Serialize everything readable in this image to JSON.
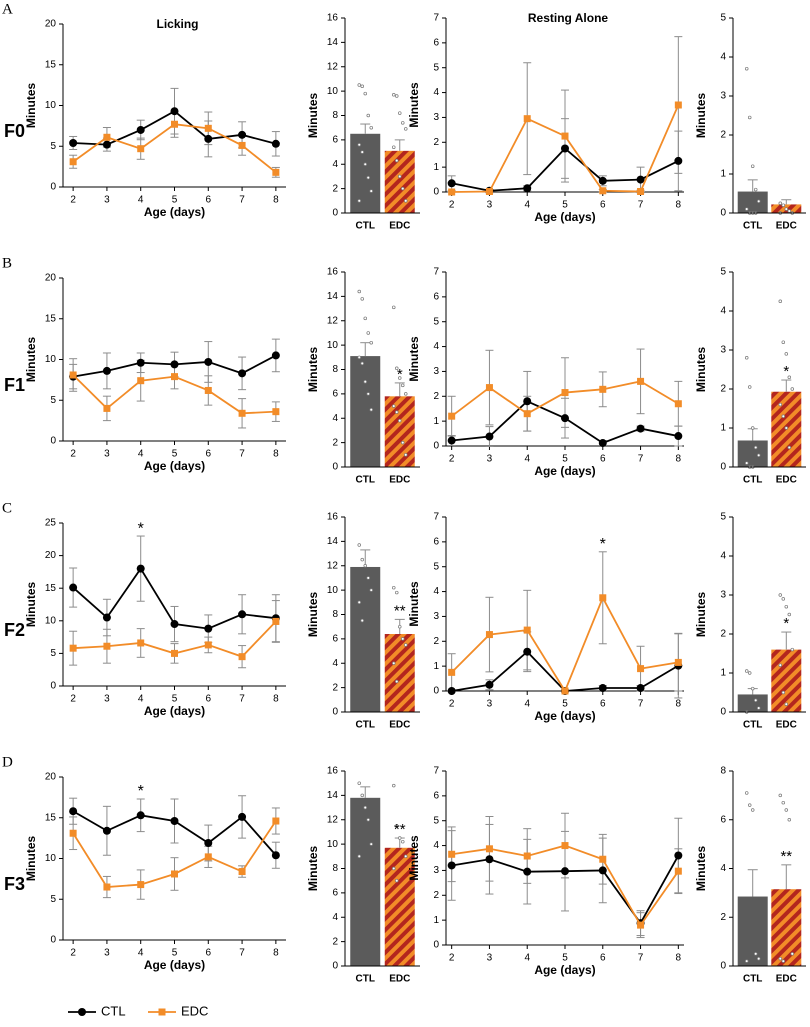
{
  "rows": [
    {
      "letter": "A",
      "generation": "F0"
    },
    {
      "letter": "B",
      "generation": "F1"
    },
    {
      "letter": "C",
      "generation": "F2"
    },
    {
      "letter": "D",
      "generation": "F3"
    }
  ],
  "chart_data": [
    {
      "type": "line",
      "title": "Licking",
      "xlabel": "Age (days)",
      "ylabel": "Minutes",
      "x": [
        2,
        3,
        4,
        5,
        6,
        7,
        8
      ],
      "xlim": [
        1.7,
        8.3
      ],
      "xticks": [
        2,
        3,
        4,
        5,
        6,
        7,
        8
      ],
      "ylim": [
        0,
        20
      ],
      "yticks": [
        0,
        5,
        10,
        15,
        20
      ],
      "series": [
        {
          "name": "CTL",
          "color": "#000000",
          "marker": "circle",
          "values": [
            5.4,
            5.2,
            7.0,
            9.3,
            5.9,
            6.4,
            5.3
          ],
          "errors": [
            0.8,
            0.8,
            1.2,
            2.8,
            2.2,
            1.6,
            1.5
          ]
        },
        {
          "name": "EDC",
          "color": "#f28c28",
          "marker": "square",
          "values": [
            3.1,
            6.1,
            4.7,
            7.7,
            7.2,
            5.1,
            1.8
          ],
          "errors": [
            0.8,
            1.2,
            1.3,
            1.6,
            2.0,
            1.2,
            0.6
          ]
        }
      ]
    },
    {
      "type": "bar",
      "ylabel": "Minutes",
      "categories": [
        "CTL",
        "EDC"
      ],
      "values": [
        6.5,
        5.1
      ],
      "errors": [
        0.8,
        0.9
      ],
      "colors": [
        "#5b5b5b",
        "#f28c28"
      ],
      "hatch": [
        false,
        true
      ],
      "hatch_color": "#b3261e",
      "ylim": [
        0,
        16
      ],
      "yticks": [
        0,
        2,
        4,
        6,
        8,
        10,
        12,
        14,
        16
      ],
      "points": [
        [
          10.5,
          10.4,
          9.8,
          8,
          7,
          5.6,
          5,
          4,
          2.9,
          1.8,
          1
        ],
        [
          9.7,
          9.6,
          8.2,
          7.4,
          6.9,
          5.4,
          4.3,
          3,
          2,
          1
        ]
      ]
    },
    {
      "type": "line",
      "title": "Resting Alone",
      "xlabel": "Age (days)",
      "ylabel": "Minutes",
      "x": [
        2,
        3,
        4,
        5,
        6,
        7,
        8
      ],
      "xlim": [
        1.85,
        8.15
      ],
      "xticks": [
        2,
        3,
        4,
        5,
        6,
        7,
        8
      ],
      "ylim": [
        0,
        7
      ],
      "yticks": [
        0,
        1,
        2,
        3,
        4,
        5,
        6,
        7
      ],
      "series": [
        {
          "name": "CTL",
          "color": "#000000",
          "marker": "circle",
          "values": [
            0.35,
            0.05,
            0.15,
            1.75,
            0.45,
            0.5,
            1.25
          ],
          "errors": [
            0.3,
            0.05,
            0.1,
            1.2,
            0.2,
            0.5,
            1.2
          ]
        },
        {
          "name": "EDC",
          "color": "#f28c28",
          "marker": "square",
          "values": [
            0,
            0.02,
            2.95,
            2.25,
            0.05,
            0.02,
            3.5
          ],
          "errors": [
            0,
            0.05,
            2.25,
            1.85,
            0.05,
            0.05,
            2.75
          ]
        }
      ]
    },
    {
      "type": "bar",
      "ylabel": "Minutes",
      "categories": [
        "CTL",
        "EDC"
      ],
      "values": [
        0.55,
        0.22
      ],
      "errors": [
        0.3,
        0.12
      ],
      "colors": [
        "#5b5b5b",
        "#f28c28"
      ],
      "hatch": [
        false,
        true
      ],
      "hatch_color": "#b3261e",
      "ylim": [
        0,
        5
      ],
      "yticks": [
        0,
        1,
        2,
        3,
        4,
        5
      ],
      "points": [
        [
          3.7,
          2.45,
          1.2,
          0.6,
          0.3,
          0.1,
          0,
          0,
          0
        ],
        [
          0.25,
          0.2,
          0.1,
          0.05,
          0,
          0
        ]
      ]
    },
    {
      "type": "line",
      "xlabel": "Age (days)",
      "ylabel": "Minutes",
      "x": [
        2,
        3,
        4,
        5,
        6,
        7,
        8
      ],
      "xlim": [
        1.7,
        8.3
      ],
      "xticks": [
        2,
        3,
        4,
        5,
        6,
        7,
        8
      ],
      "ylim": [
        0,
        20
      ],
      "yticks": [
        0,
        5,
        10,
        15,
        20
      ],
      "series": [
        {
          "name": "CTL",
          "color": "#000000",
          "marker": "circle",
          "values": [
            7.9,
            8.6,
            9.6,
            9.4,
            9.7,
            8.3,
            10.5
          ],
          "errors": [
            1.5,
            2.2,
            1.2,
            1.5,
            2.5,
            2.0,
            2.0
          ]
        },
        {
          "name": "EDC",
          "color": "#f28c28",
          "marker": "square",
          "values": [
            8.1,
            4.0,
            7.4,
            7.9,
            6.2,
            3.4,
            3.6
          ],
          "errors": [
            2.0,
            1.5,
            2.5,
            1.5,
            1.8,
            1.8,
            1.2
          ]
        }
      ]
    },
    {
      "type": "bar",
      "ylabel": "Minutes",
      "categories": [
        "CTL",
        "EDC"
      ],
      "values": [
        9.1,
        5.8
      ],
      "errors": [
        1.1,
        1.1
      ],
      "colors": [
        "#5b5b5b",
        "#f28c28"
      ],
      "hatch": [
        false,
        true
      ],
      "hatch_color": "#b3261e",
      "ylim": [
        0,
        16
      ],
      "yticks": [
        0,
        2,
        4,
        6,
        8,
        10,
        12,
        14,
        16
      ],
      "points": [
        [
          14.4,
          13.8,
          12.2,
          11,
          10.2,
          9,
          8.5,
          7,
          6,
          4.7
        ],
        [
          13.1,
          8.1,
          7.3,
          6.7,
          6,
          5,
          4.5,
          3.8,
          2,
          1
        ]
      ],
      "annotations": [
        {
          "text": "*",
          "category": "EDC"
        }
      ]
    },
    {
      "type": "line",
      "xlabel": "Age (days)",
      "ylabel": "Minutes",
      "x": [
        2,
        3,
        4,
        5,
        6,
        7,
        8
      ],
      "xlim": [
        1.85,
        8.15
      ],
      "xticks": [
        2,
        3,
        4,
        5,
        6,
        7,
        8
      ],
      "ylim": [
        0,
        7
      ],
      "yticks": [
        0,
        1,
        2,
        3,
        4,
        5,
        6,
        7
      ],
      "series": [
        {
          "name": "CTL",
          "color": "#000000",
          "marker": "circle",
          "values": [
            0.22,
            0.38,
            1.8,
            1.12,
            0.12,
            0.7,
            0.4
          ],
          "errors": [
            0.2,
            0.4,
            1.2,
            0.8,
            0.1,
            0.1,
            0.4
          ]
        },
        {
          "name": "EDC",
          "color": "#f28c28",
          "marker": "square",
          "values": [
            1.2,
            2.35,
            1.3,
            2.15,
            2.28,
            2.6,
            1.7
          ],
          "errors": [
            0.8,
            1.5,
            0.7,
            1.4,
            0.7,
            1.3,
            0.9
          ]
        }
      ]
    },
    {
      "type": "bar",
      "ylabel": "Minutes",
      "categories": [
        "CTL",
        "EDC"
      ],
      "values": [
        0.68,
        1.93
      ],
      "errors": [
        0.3,
        0.3
      ],
      "colors": [
        "#5b5b5b",
        "#f28c28"
      ],
      "hatch": [
        false,
        true
      ],
      "hatch_color": "#b3261e",
      "ylim": [
        0,
        5
      ],
      "yticks": [
        0,
        1,
        2,
        3,
        4,
        5
      ],
      "points": [
        [
          2.8,
          2.05,
          1,
          0.5,
          0.3,
          0.1,
          0,
          0
        ],
        [
          4.25,
          3.2,
          2.9,
          2.3,
          2,
          1.6,
          1.3,
          1,
          0.5
        ]
      ],
      "annotations": [
        {
          "text": "*",
          "category": "EDC"
        }
      ]
    },
    {
      "type": "line",
      "xlabel": "Age (days)",
      "ylabel": "Minutes",
      "x": [
        2,
        3,
        4,
        5,
        6,
        7,
        8
      ],
      "xlim": [
        1.7,
        8.3
      ],
      "xticks": [
        2,
        3,
        4,
        5,
        6,
        7,
        8
      ],
      "ylim": [
        0,
        25
      ],
      "yticks": [
        0,
        5,
        10,
        15,
        20,
        25
      ],
      "series": [
        {
          "name": "CTL",
          "color": "#000000",
          "marker": "circle",
          "values": [
            15.1,
            10.5,
            18.0,
            9.5,
            8.8,
            11.0,
            10.4
          ],
          "errors": [
            3.0,
            2.8,
            5.0,
            2.7,
            2.1,
            3.0,
            3.6
          ]
        },
        {
          "name": "EDC",
          "color": "#f28c28",
          "marker": "square",
          "values": [
            5.8,
            6.1,
            6.6,
            5.0,
            6.3,
            4.5,
            9.9
          ],
          "errors": [
            2.6,
            2.6,
            2.2,
            1.5,
            1.2,
            1.7,
            3.2
          ]
        }
      ],
      "annotations": [
        {
          "text": "*",
          "x": 4
        }
      ]
    },
    {
      "type": "bar",
      "ylabel": "Minutes",
      "categories": [
        "CTL",
        "EDC"
      ],
      "values": [
        11.9,
        6.4
      ],
      "errors": [
        1.4,
        1.2
      ],
      "colors": [
        "#5b5b5b",
        "#f28c28"
      ],
      "hatch": [
        false,
        true
      ],
      "hatch_color": "#b3261e",
      "ylim": [
        0,
        16
      ],
      "yticks": [
        0,
        2,
        4,
        6,
        8,
        10,
        12,
        14,
        16
      ],
      "points": [
        [
          13.7,
          12.5,
          12,
          11,
          10,
          9,
          7.5
        ],
        [
          10.2,
          9.8,
          7,
          6,
          5.5,
          4,
          2.5
        ]
      ],
      "annotations": [
        {
          "text": "**",
          "category": "EDC"
        }
      ]
    },
    {
      "type": "line",
      "xlabel": "Age (days)",
      "ylabel": "Minutes",
      "x": [
        2,
        3,
        4,
        5,
        6,
        7,
        8
      ],
      "xlim": [
        1.85,
        8.15
      ],
      "xticks": [
        2,
        3,
        4,
        5,
        6,
        7,
        8
      ],
      "ylim": [
        0,
        7
      ],
      "yticks": [
        0,
        1,
        2,
        3,
        4,
        5,
        6,
        7
      ],
      "series": [
        {
          "name": "CTL",
          "color": "#000000",
          "marker": "circle",
          "values": [
            0,
            0.25,
            1.58,
            0,
            0.12,
            0.12,
            1.02
          ],
          "errors": [
            0,
            0.2,
            0.8,
            0,
            0.1,
            0.1,
            1.3
          ]
        },
        {
          "name": "EDC",
          "color": "#f28c28",
          "marker": "square",
          "values": [
            0.75,
            2.27,
            2.45,
            0,
            3.75,
            0.9,
            1.15
          ],
          "errors": [
            0.75,
            1.5,
            1.6,
            0,
            1.85,
            0.9,
            1.15
          ]
        }
      ],
      "annotations": [
        {
          "text": "*",
          "x": 6
        }
      ]
    },
    {
      "type": "bar",
      "ylabel": "Minutes",
      "categories": [
        "CTL",
        "EDC"
      ],
      "values": [
        0.45,
        1.6
      ],
      "errors": [
        0.15,
        0.45
      ],
      "colors": [
        "#5b5b5b",
        "#f28c28"
      ],
      "hatch": [
        false,
        true
      ],
      "hatch_color": "#b3261e",
      "ylim": [
        0,
        5
      ],
      "yticks": [
        0,
        1,
        2,
        3,
        4,
        5
      ],
      "points": [
        [
          1.05,
          1,
          0.6,
          0.3,
          0.1,
          0
        ],
        [
          3,
          2.9,
          2.7,
          2.5,
          1.6,
          1.2,
          0.5,
          0.2
        ]
      ],
      "annotations": [
        {
          "text": "*",
          "category": "EDC"
        }
      ]
    },
    {
      "type": "line",
      "xlabel": "Age (days)",
      "ylabel": "Minutes",
      "x": [
        2,
        3,
        4,
        5,
        6,
        7,
        8
      ],
      "xlim": [
        1.7,
        8.3
      ],
      "xticks": [
        2,
        3,
        4,
        5,
        6,
        7,
        8
      ],
      "ylim": [
        0,
        20
      ],
      "yticks": [
        0,
        5,
        10,
        15,
        20
      ],
      "series": [
        {
          "name": "CTL",
          "color": "#000000",
          "marker": "circle",
          "values": [
            15.8,
            13.4,
            15.3,
            14.6,
            11.9,
            15.1,
            10.4
          ],
          "errors": [
            1.6,
            3.0,
            2.0,
            2.7,
            2.2,
            2.6,
            1.6
          ]
        },
        {
          "name": "EDC",
          "color": "#f28c28",
          "marker": "square",
          "values": [
            13.1,
            6.5,
            6.8,
            8.1,
            10.2,
            8.4,
            14.6
          ],
          "errors": [
            2.0,
            1.3,
            1.8,
            2.0,
            1.3,
            0.7,
            1.6
          ]
        }
      ],
      "annotations": [
        {
          "text": "*",
          "x": 4
        }
      ]
    },
    {
      "type": "bar",
      "ylabel": "Minutes",
      "categories": [
        "CTL",
        "EDC"
      ],
      "values": [
        13.8,
        9.7
      ],
      "errors": [
        0.9,
        0.8
      ],
      "colors": [
        "#5b5b5b",
        "#f28c28"
      ],
      "hatch": [
        false,
        true
      ],
      "hatch_color": "#b3261e",
      "ylim": [
        0,
        16
      ],
      "yticks": [
        0,
        2,
        4,
        6,
        8,
        10,
        12,
        14,
        16
      ],
      "points": [
        [
          15,
          14,
          13,
          12,
          10,
          9
        ],
        [
          14.8,
          11.5,
          10.5,
          10.2,
          9,
          8,
          7
        ]
      ],
      "annotations": [
        {
          "text": "**",
          "category": "EDC"
        }
      ]
    },
    {
      "type": "line",
      "xlabel": "Age (days)",
      "ylabel": "Minutes",
      "x": [
        2,
        3,
        4,
        5,
        6,
        7,
        8
      ],
      "xlim": [
        1.85,
        8.15
      ],
      "xticks": [
        2,
        3,
        4,
        5,
        6,
        7,
        8
      ],
      "ylim": [
        0,
        7
      ],
      "yticks": [
        0,
        1,
        2,
        3,
        4,
        5,
        6,
        7
      ],
      "series": [
        {
          "name": "CTL",
          "color": "#000000",
          "marker": "circle",
          "values": [
            3.2,
            3.45,
            2.95,
            2.97,
            3.0,
            0.88,
            3.6
          ],
          "errors": [
            1.4,
            1.4,
            1.3,
            1.6,
            1.3,
            0.5,
            1.5
          ]
        },
        {
          "name": "EDC",
          "color": "#f28c28",
          "marker": "square",
          "values": [
            3.65,
            3.87,
            3.58,
            4.0,
            3.45,
            0.8,
            2.97
          ],
          "errors": [
            1.1,
            1.3,
            1.1,
            1.3,
            1.0,
            0.5,
            0.9
          ]
        }
      ]
    },
    {
      "type": "bar",
      "ylabel": "Minutes",
      "categories": [
        "CTL",
        "EDC"
      ],
      "values": [
        2.85,
        3.15
      ],
      "errors": [
        1.1,
        1.0
      ],
      "colors": [
        "#5b5b5b",
        "#f28c28"
      ],
      "hatch": [
        false,
        true
      ],
      "hatch_color": "#b3261e",
      "ylim": [
        0,
        8
      ],
      "yticks": [
        0,
        2,
        4,
        6,
        8
      ],
      "points": [
        [
          7.1,
          6.6,
          6.4,
          0.5,
          0.3,
          0.2
        ],
        [
          7,
          6.7,
          6.4,
          6,
          0.5,
          0.3,
          0.2
        ]
      ],
      "annotations": [
        {
          "text": "**",
          "category": "EDC"
        }
      ]
    }
  ]
}
